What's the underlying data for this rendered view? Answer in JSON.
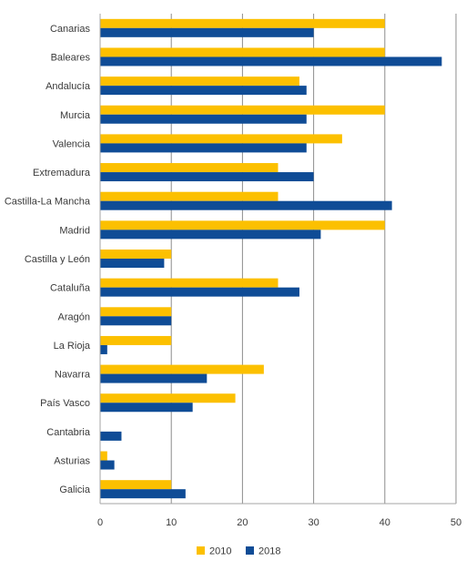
{
  "chart_data": {
    "type": "bar",
    "orientation": "horizontal",
    "categories": [
      "Canarias",
      "Baleares",
      "Andalucía",
      "Murcia",
      "Valencia",
      "Extremadura",
      "Castilla-La Mancha",
      "Madrid",
      "Castilla y León",
      "Cataluña",
      "Aragón",
      "La Rioja",
      "Navarra",
      "País Vasco",
      "Cantabria",
      "Asturias",
      "Galicia"
    ],
    "series": [
      {
        "name": "2010",
        "color": "#fcc000",
        "values": [
          40,
          40,
          28,
          40,
          34,
          25,
          25,
          40,
          10,
          25,
          10,
          10,
          23,
          19,
          0,
          1,
          10
        ]
      },
      {
        "name": "2018",
        "color": "#0f4c96",
        "values": [
          30,
          48,
          29,
          29,
          29,
          30,
          41,
          31,
          9,
          28,
          10,
          1,
          15,
          13,
          3,
          2,
          12
        ]
      }
    ],
    "xlim": [
      0,
      50
    ],
    "xticks": [
      "0",
      "10",
      "20",
      "30",
      "40",
      "50"
    ],
    "grid": "vertical",
    "legend": "bottom",
    "title": "",
    "xlabel": "",
    "ylabel": ""
  }
}
